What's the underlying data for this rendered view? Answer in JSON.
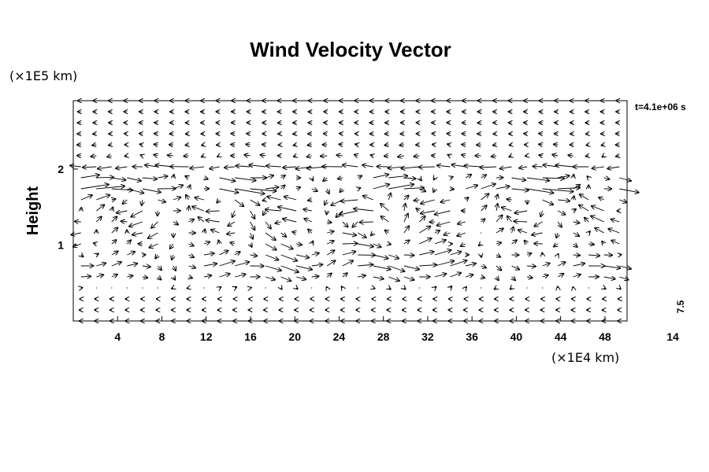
{
  "chart_data": {
    "type": "vector",
    "title": "Wind Velocity Vector",
    "ylabel": "Height",
    "x_unit_label": "(×1E4 km)",
    "y_unit_label": "(×1E5 km)",
    "time_label": "t=4.1e+06 s",
    "reference_vector_label": "7.5",
    "xlim": [
      0,
      50
    ],
    "ylim": [
      0,
      2.9
    ],
    "x_ticks": [
      4,
      8,
      12,
      16,
      20,
      24,
      28,
      32,
      36,
      40,
      44,
      48
    ],
    "x_extra_tick": 14,
    "y_ticks": [
      1,
      2
    ],
    "grid": {
      "nx": 36,
      "ny": 21
    },
    "field": {
      "upper_jet_height": 1.8,
      "eddy_center": [
        25,
        1.3
      ],
      "upper_layer_height": 2.0,
      "lower_layer_height": 0.7
    }
  }
}
